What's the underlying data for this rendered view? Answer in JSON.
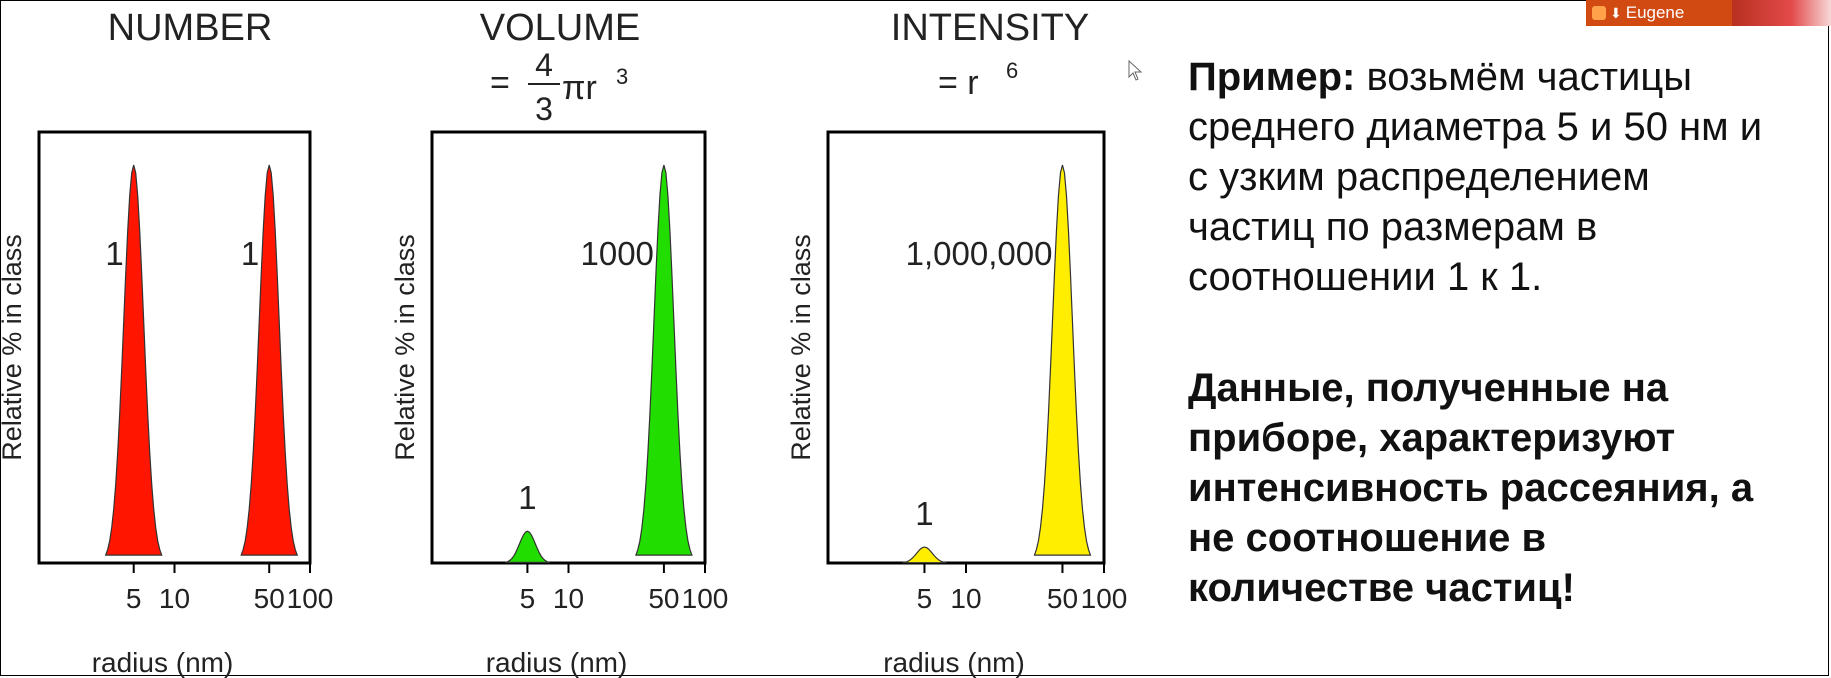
{
  "chart_data": [
    {
      "type": "area",
      "title": "NUMBER",
      "formula": [],
      "ylabel": "Relative % in class",
      "xlabel": "radius (nm)",
      "xscale": "log",
      "xlim": [
        1,
        100
      ],
      "xticks": [
        "5",
        "10",
        "50",
        "100"
      ],
      "color": "#ff1500",
      "peaks": [
        {
          "x": 5,
          "height": 1.0,
          "label": "1"
        },
        {
          "x": 50,
          "height": 1.0,
          "label": "1"
        }
      ]
    },
    {
      "type": "area",
      "title": "VOLUME",
      "formula": [
        "= ",
        "4",
        "3",
        " πr",
        "3"
      ],
      "ylabel": "Relative % in class",
      "xlabel": "radius (nm)",
      "xscale": "log",
      "xlim": [
        1,
        100
      ],
      "xticks": [
        "5",
        "10",
        "50",
        "100"
      ],
      "color": "#22dd00",
      "peaks": [
        {
          "x": 5,
          "height": 0.08,
          "label": "1"
        },
        {
          "x": 50,
          "height": 1.0,
          "label": "1000"
        }
      ]
    },
    {
      "type": "area",
      "title": "INTENSITY",
      "formula": [
        "= r ",
        "6"
      ],
      "ylabel": "Relative % in class",
      "xlabel": "radius (nm)",
      "xscale": "log",
      "xlim": [
        1,
        100
      ],
      "xticks": [
        "5",
        "10",
        "50",
        "100"
      ],
      "color": "#ffee00",
      "peaks": [
        {
          "x": 5,
          "height": 0.04,
          "label": "1"
        },
        {
          "x": 50,
          "height": 1.0,
          "label": "1,000,000"
        }
      ]
    }
  ],
  "text": {
    "para1_bold": "Пример:",
    "para1_lines": [
      " возьмём частицы",
      "среднего диаметра 5  и 50 нм и",
      "с узким распределением",
      "частиц по размерам в",
      "соотношении 1 к 1."
    ],
    "para2_lines": [
      "Данные, полученные на",
      "приборе, характеризуют",
      "интенсивность рассеяния, а",
      "не соотношение в",
      "количестве частиц!"
    ]
  },
  "presenter": {
    "name": "Eugene"
  },
  "colors": {
    "badge": "#d14a12"
  },
  "icons": {
    "cursor": "mouse-pointer-icon"
  }
}
